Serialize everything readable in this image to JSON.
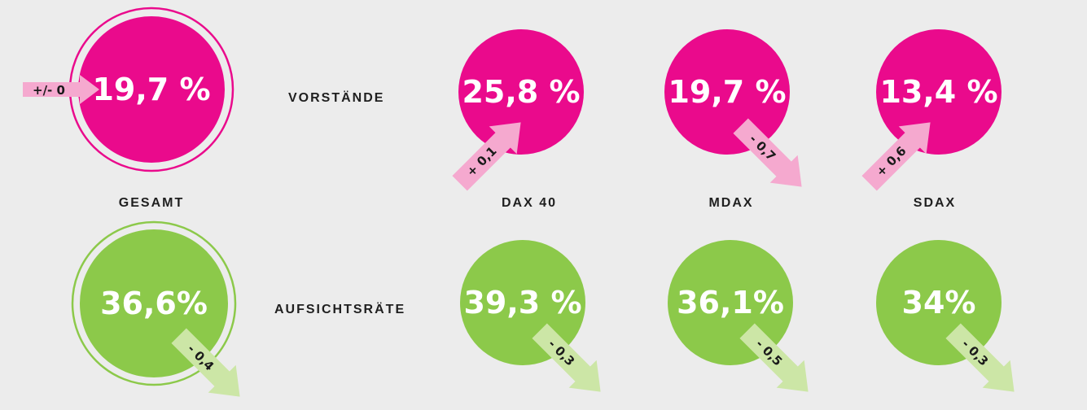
{
  "colors": {
    "pink": "#ea0a8c",
    "pink_light": "#f5a9cf",
    "green": "#8cc94a",
    "green_light": "#cce6a6",
    "background": "#ececec"
  },
  "labels": {
    "vorstaende": "VORSTÄNDE",
    "aufsichtsraete": "AUFSICHTSRÄTE",
    "gesamt": "GESAMT",
    "dax40": "DAX 40",
    "mdax": "MDAX",
    "sdax": "SDAX"
  },
  "vorstaende": {
    "gesamt": {
      "value": "19,7 %",
      "change": "+/- 0"
    },
    "dax40": {
      "value": "25,8 %",
      "change": "+ 0,1"
    },
    "mdax": {
      "value": "19,7 %",
      "change": "- 0,7"
    },
    "sdax": {
      "value": "13,4 %",
      "change": "+ 0,6"
    }
  },
  "aufsichtsraete": {
    "gesamt": {
      "value": "36,6%",
      "change": "- 0,4"
    },
    "dax40": {
      "value": "39,3 %",
      "change": "- 0,3"
    },
    "mdax": {
      "value": "36,1%",
      "change": "- 0,5"
    },
    "sdax": {
      "value": "34%",
      "change": "- 0,3"
    }
  }
}
